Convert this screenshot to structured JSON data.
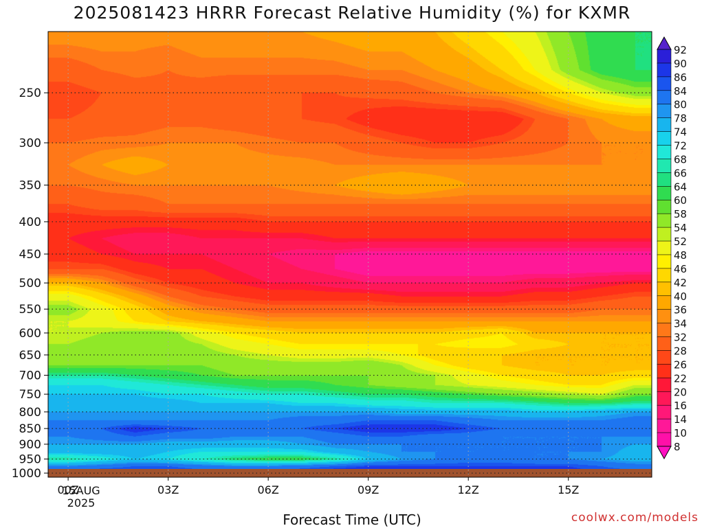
{
  "title": "2025081423 HRRR Forecast Relative Humidity (%) for KXMR",
  "xlabel": "Forecast Time (UTC)",
  "credit": "coolwx.com/models",
  "date_label": {
    "day": "15AUG",
    "year": "2025"
  },
  "chart_data": {
    "type": "heatmap",
    "title": "2025081423 HRRR Forecast Relative Humidity (%) for KXMR",
    "xlabel": "Forecast Time (UTC)",
    "x_unit": "forecast hour from 00Z 15AUG2025",
    "xlim": [
      -0.6,
      17.5
    ],
    "x_ticks": [
      {
        "hour": 0,
        "label": "00Z"
      },
      {
        "hour": 3,
        "label": "03Z"
      },
      {
        "hour": 6,
        "label": "06Z"
      },
      {
        "hour": 9,
        "label": "09Z"
      },
      {
        "hour": 12,
        "label": "12Z"
      },
      {
        "hour": 15,
        "label": "15Z"
      }
    ],
    "y_unit": "pressure (hPa)",
    "y_scale": "log",
    "ylim": [
      1015,
      200
    ],
    "y_ticks": [
      250,
      300,
      350,
      400,
      450,
      500,
      550,
      600,
      650,
      700,
      750,
      800,
      850,
      900,
      950,
      1000
    ],
    "grid": true,
    "colorbar": {
      "placement": "right",
      "levels": [
        92,
        90,
        86,
        84,
        80,
        78,
        74,
        72,
        68,
        66,
        64,
        60,
        58,
        54,
        52,
        48,
        46,
        42,
        40,
        36,
        34,
        32,
        28,
        26,
        22,
        20,
        16,
        14,
        10,
        8
      ],
      "colors": [
        "#5522cc",
        "#2a1fd8",
        "#1c36e8",
        "#1a55ee",
        "#1e75f0",
        "#1f95f0",
        "#18b5ee",
        "#18d2ec",
        "#20e8d8",
        "#20e8b0",
        "#20e080",
        "#30dc50",
        "#60e030",
        "#90e828",
        "#c0f020",
        "#eef418",
        "#fff000",
        "#ffd800",
        "#ffc000",
        "#ffa800",
        "#ff9010",
        "#ff7818",
        "#ff6018",
        "#ff4818",
        "#ff3018",
        "#ff1838",
        "#ff1858",
        "#ff1878",
        "#ff1898",
        "#ff10a8",
        "#ff10c0"
      ]
    },
    "hours": [
      -0.6,
      0,
      1,
      2,
      3,
      4,
      5,
      6,
      7,
      8,
      9,
      10,
      11,
      12,
      13,
      14,
      15,
      16,
      17,
      17.5
    ],
    "levels_hpa": [
      200,
      230,
      250,
      275,
      300,
      325,
      350,
      375,
      400,
      425,
      450,
      475,
      500,
      525,
      550,
      575,
      600,
      625,
      650,
      675,
      700,
      725,
      750,
      775,
      800,
      825,
      850,
      875,
      900,
      925,
      950,
      975,
      1000,
      1015
    ],
    "rh_percent": [
      [
        36,
        36,
        36,
        35,
        35,
        36,
        36,
        36,
        36,
        37,
        38,
        38,
        40,
        44,
        48,
        52,
        58,
        62,
        64,
        64
      ],
      [
        30,
        30,
        32,
        33,
        32,
        33,
        33,
        33,
        33,
        33,
        34,
        34,
        36,
        38,
        42,
        48,
        56,
        62,
        64,
        64
      ],
      [
        26,
        26,
        28,
        30,
        31,
        30,
        28,
        28,
        28,
        28,
        29,
        30,
        32,
        34,
        36,
        40,
        46,
        52,
        56,
        56
      ],
      [
        28,
        28,
        29,
        30,
        31,
        31,
        30,
        29,
        28,
        27,
        24,
        22,
        22,
        22,
        22,
        28,
        32,
        36,
        38,
        38
      ],
      [
        32,
        32,
        33,
        33,
        34,
        34,
        34,
        33,
        32,
        32,
        30,
        28,
        26,
        26,
        28,
        30,
        32,
        34,
        34,
        34
      ],
      [
        34,
        34,
        36,
        38,
        36,
        36,
        35,
        35,
        35,
        34,
        34,
        34,
        34,
        34,
        34,
        34,
        34,
        34,
        34,
        34
      ],
      [
        32,
        32,
        33,
        34,
        34,
        34,
        34,
        34,
        35,
        36,
        38,
        40,
        38,
        36,
        36,
        36,
        36,
        36,
        36,
        36
      ],
      [
        28,
        28,
        30,
        30,
        32,
        32,
        32,
        32,
        32,
        32,
        32,
        32,
        32,
        32,
        32,
        32,
        32,
        32,
        32,
        32
      ],
      [
        24,
        24,
        24,
        24,
        24,
        24,
        24,
        26,
        26,
        26,
        26,
        26,
        26,
        26,
        26,
        26,
        26,
        26,
        26,
        26
      ],
      [
        22,
        22,
        20,
        18,
        18,
        20,
        20,
        20,
        20,
        22,
        22,
        22,
        22,
        22,
        22,
        22,
        22,
        22,
        22,
        22
      ],
      [
        24,
        24,
        22,
        20,
        20,
        20,
        18,
        16,
        14,
        14,
        12,
        12,
        12,
        12,
        12,
        12,
        12,
        12,
        12,
        12
      ],
      [
        28,
        28,
        28,
        24,
        22,
        22,
        20,
        18,
        16,
        14,
        12,
        12,
        12,
        12,
        12,
        12,
        12,
        12,
        12,
        12
      ],
      [
        40,
        40,
        36,
        30,
        26,
        24,
        22,
        20,
        20,
        18,
        16,
        16,
        16,
        16,
        16,
        18,
        18,
        20,
        22,
        22
      ],
      [
        50,
        50,
        44,
        38,
        32,
        28,
        26,
        24,
        24,
        24,
        24,
        22,
        22,
        22,
        22,
        24,
        24,
        26,
        28,
        28
      ],
      [
        56,
        56,
        50,
        44,
        38,
        34,
        32,
        30,
        30,
        30,
        30,
        30,
        30,
        30,
        30,
        30,
        30,
        32,
        32,
        32
      ],
      [
        52,
        52,
        50,
        46,
        42,
        40,
        38,
        36,
        36,
        36,
        36,
        36,
        36,
        36,
        36,
        36,
        36,
        36,
        36,
        36
      ],
      [
        52,
        52,
        54,
        56,
        56,
        50,
        46,
        44,
        42,
        42,
        42,
        42,
        42,
        44,
        46,
        40,
        40,
        40,
        40,
        40
      ],
      [
        54,
        54,
        56,
        56,
        56,
        54,
        50,
        48,
        46,
        46,
        46,
        46,
        46,
        48,
        48,
        44,
        42,
        40,
        40,
        40
      ],
      [
        56,
        56,
        58,
        56,
        58,
        56,
        54,
        52,
        50,
        50,
        50,
        48,
        44,
        42,
        42,
        40,
        40,
        40,
        40,
        40
      ],
      [
        58,
        58,
        58,
        58,
        58,
        58,
        56,
        56,
        56,
        56,
        58,
        54,
        48,
        44,
        42,
        40,
        40,
        40,
        40,
        40
      ],
      [
        66,
        66,
        66,
        64,
        62,
        60,
        58,
        58,
        58,
        58,
        58,
        56,
        54,
        50,
        46,
        44,
        42,
        42,
        44,
        44
      ],
      [
        72,
        72,
        72,
        70,
        68,
        66,
        64,
        62,
        62,
        60,
        58,
        56,
        54,
        52,
        50,
        48,
        46,
        46,
        52,
        52
      ],
      [
        74,
        74,
        74,
        74,
        72,
        72,
        70,
        68,
        68,
        66,
        64,
        64,
        62,
        60,
        58,
        56,
        54,
        52,
        58,
        58
      ],
      [
        76,
        76,
        76,
        76,
        76,
        74,
        74,
        74,
        72,
        72,
        70,
        70,
        68,
        68,
        68,
        66,
        64,
        64,
        66,
        66
      ],
      [
        78,
        78,
        78,
        78,
        78,
        78,
        78,
        78,
        78,
        78,
        78,
        76,
        76,
        76,
        76,
        74,
        74,
        76,
        78,
        78
      ],
      [
        80,
        80,
        80,
        80,
        80,
        80,
        80,
        80,
        82,
        82,
        84,
        84,
        84,
        82,
        80,
        80,
        80,
        80,
        82,
        82
      ],
      [
        82,
        82,
        84,
        88,
        86,
        84,
        82,
        82,
        84,
        86,
        88,
        88,
        88,
        86,
        84,
        82,
        82,
        82,
        84,
        84
      ],
      [
        80,
        80,
        82,
        84,
        82,
        82,
        80,
        80,
        80,
        82,
        84,
        84,
        82,
        82,
        80,
        80,
        80,
        80,
        80,
        80
      ],
      [
        78,
        78,
        78,
        78,
        76,
        76,
        76,
        76,
        78,
        80,
        80,
        80,
        80,
        80,
        80,
        80,
        80,
        80,
        78,
        78
      ],
      [
        76,
        76,
        76,
        76,
        74,
        72,
        72,
        72,
        72,
        76,
        78,
        80,
        80,
        80,
        80,
        80,
        80,
        80,
        76,
        76
      ],
      [
        66,
        66,
        70,
        74,
        72,
        68,
        64,
        62,
        62,
        66,
        74,
        78,
        80,
        82,
        82,
        80,
        80,
        78,
        76,
        76
      ],
      [
        80,
        80,
        82,
        84,
        84,
        82,
        80,
        80,
        82,
        84,
        86,
        86,
        86,
        86,
        86,
        86,
        86,
        84,
        82,
        82
      ],
      [
        86,
        86,
        88,
        88,
        88,
        86,
        86,
        86,
        88,
        90,
        90,
        90,
        88,
        88,
        88,
        88,
        88,
        86,
        86,
        86
      ],
      [
        84,
        84,
        84,
        86,
        86,
        86,
        86,
        86,
        86,
        88,
        88,
        88,
        88,
        88,
        88,
        88,
        88,
        86,
        86,
        86
      ]
    ]
  }
}
